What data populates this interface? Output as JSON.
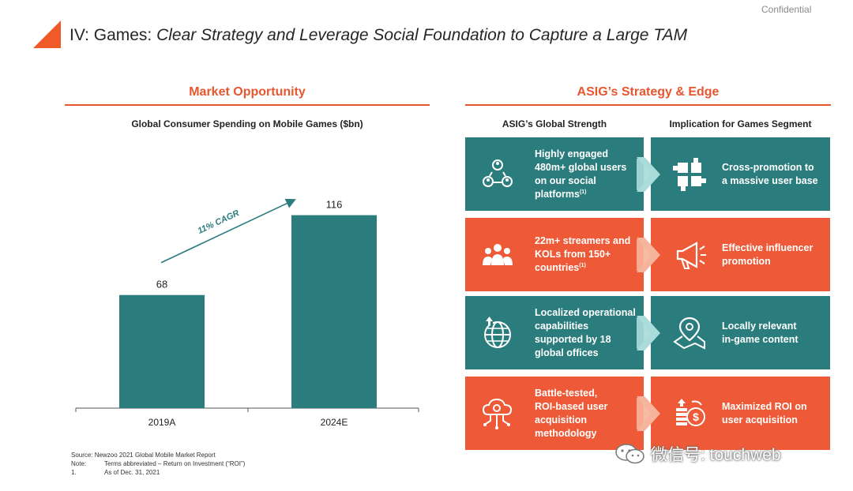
{
  "header": {
    "confidential": "Confidential",
    "title_prefix": "IV: Games: ",
    "title_italic": "Clear Strategy and Leverage Social Foundation to Capture a Large TAM"
  },
  "left_section": {
    "heading": "Market Opportunity",
    "chart_title": "Global Consumer Spending on Mobile Games ($bn)"
  },
  "chart_data": {
    "type": "bar",
    "title": "Global Consumer Spending on Mobile Games ($bn)",
    "categories": [
      "2019A",
      "2024E"
    ],
    "values": [
      68,
      116
    ],
    "data_labels": [
      "68",
      "116"
    ],
    "annotation": "11% CAGR",
    "ylim": [
      0,
      140
    ],
    "xlabel": "",
    "ylabel": "",
    "grid": false,
    "bar_color": "#2a7c7d"
  },
  "right_section": {
    "heading": "ASIG’s Strategy & Edge",
    "col_left": "ASIG’s Global Strength",
    "col_right": "Implication for Games Segment",
    "rows": [
      {
        "color": "teal",
        "strength_icon": "users-network-icon",
        "strength_lines": [
          "Highly engaged",
          "480m+ global users",
          "on our social",
          "platforms"
        ],
        "strength_note": "(1)",
        "implication_icon": "puzzle-hands-icon",
        "implication_lines": [
          "Cross-promotion to",
          "a massive user base"
        ]
      },
      {
        "color": "orange",
        "strength_icon": "crowd-icon",
        "strength_lines": [
          "22m+ streamers and",
          "KOLs from 150+",
          "countries"
        ],
        "strength_note": "(1)",
        "implication_icon": "megaphone-icon",
        "implication_lines": [
          "Effective influencer",
          "promotion"
        ]
      },
      {
        "color": "teal",
        "strength_icon": "globe-upload-icon",
        "strength_lines": [
          "Localized operational",
          "capabilities",
          "supported by 18",
          "global offices"
        ],
        "strength_note": "",
        "implication_icon": "map-pin-icon",
        "implication_lines": [
          "Locally relevant",
          "in-game content"
        ]
      },
      {
        "color": "orange",
        "strength_icon": "cloud-gear-icon",
        "strength_lines": [
          "Battle-tested,",
          "ROI-based user",
          "acquisition",
          "methodology"
        ],
        "strength_note": "",
        "implication_icon": "coins-roi-icon",
        "implication_lines": [
          "Maximized ROI on",
          "user acquisition"
        ]
      }
    ]
  },
  "footnotes": [
    {
      "key": "",
      "text": "Source: Newzoo 2021 Global Mobile Market Report"
    },
    {
      "key": "Note:",
      "text": "Terms abbreviated – Return on Investment (“ROI”)"
    },
    {
      "key": "1.",
      "text": "As of Dec. 31, 2021"
    }
  ],
  "watermark": "微信号: touchweb",
  "colors": {
    "accent": "#e8562f",
    "teal": "#2a7c7d",
    "orange": "#ee5a37",
    "chevron_teal": "#a9dcd9",
    "chevron_orange": "#f6b49c"
  }
}
